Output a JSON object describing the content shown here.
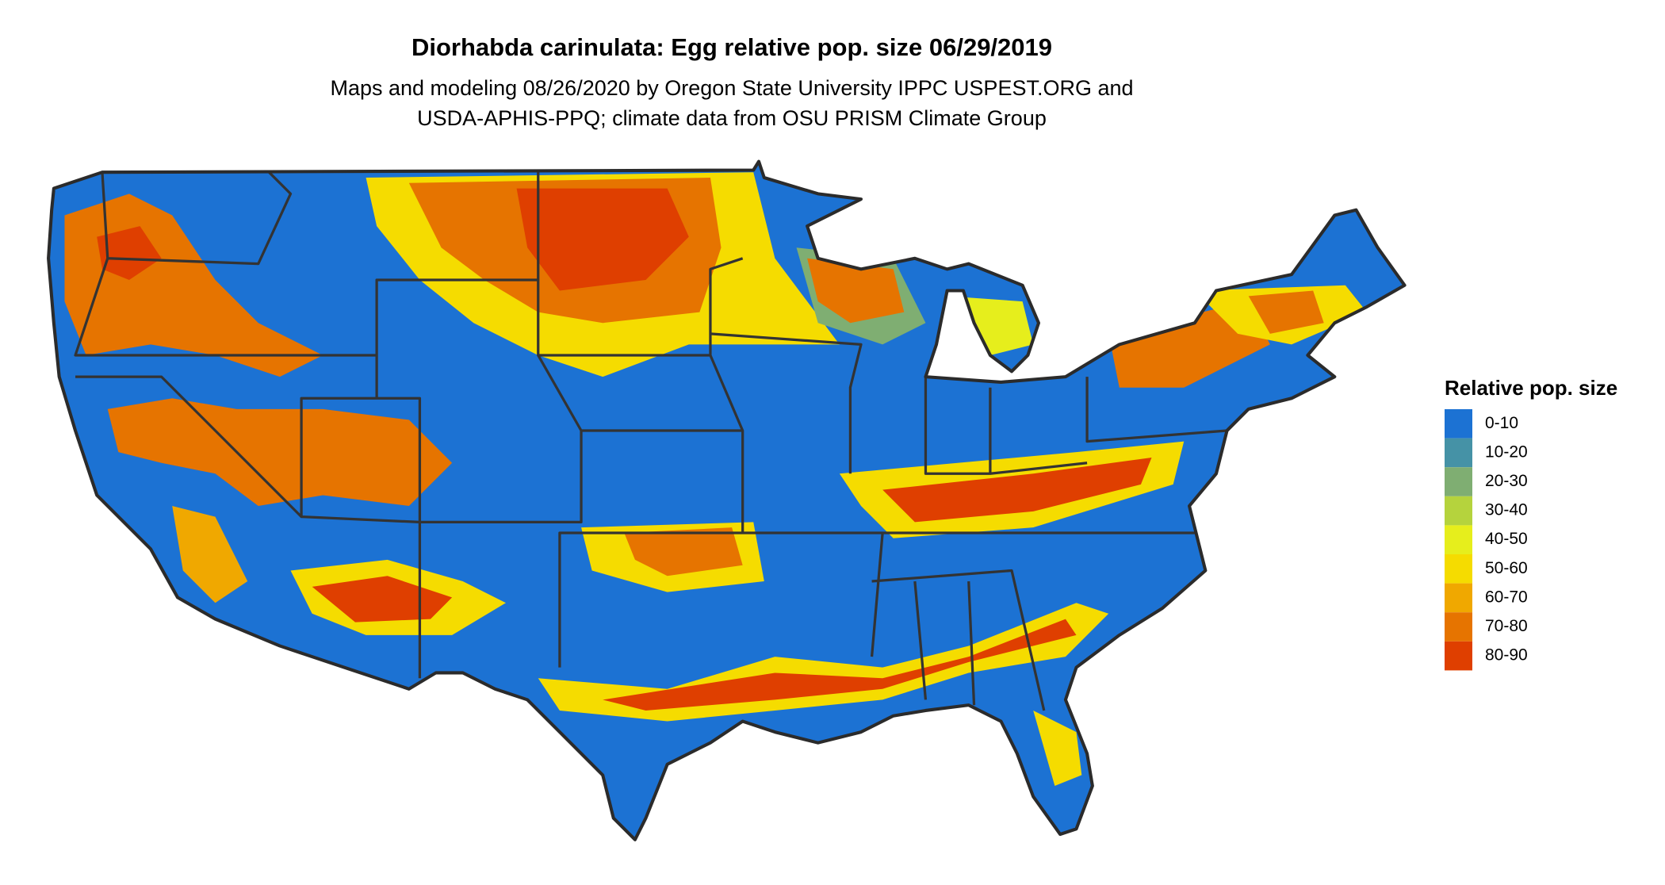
{
  "header": {
    "title": "Diorhabda carinulata: Egg relative pop. size 06/29/2019",
    "subtitle_lines": [
      "Maps and modeling 08/26/2020 by Oregon State University IPPC USPEST.ORG and",
      "USDA-APHIS-PPQ; climate data from OSU PRISM Climate Group"
    ]
  },
  "legend": {
    "title": "Relative pop. size",
    "items": [
      {
        "label": "0-10",
        "color": "#1c72d3"
      },
      {
        "label": "10-20",
        "color": "#4592a6"
      },
      {
        "label": "20-30",
        "color": "#7fae72"
      },
      {
        "label": "30-40",
        "color": "#b5d33d"
      },
      {
        "label": "40-50",
        "color": "#e6ee1c"
      },
      {
        "label": "50-60",
        "color": "#f5dc00"
      },
      {
        "label": "60-70",
        "color": "#f0a800"
      },
      {
        "label": "70-80",
        "color": "#e67400"
      },
      {
        "label": "80-90",
        "color": "#df3f00"
      }
    ]
  }
}
